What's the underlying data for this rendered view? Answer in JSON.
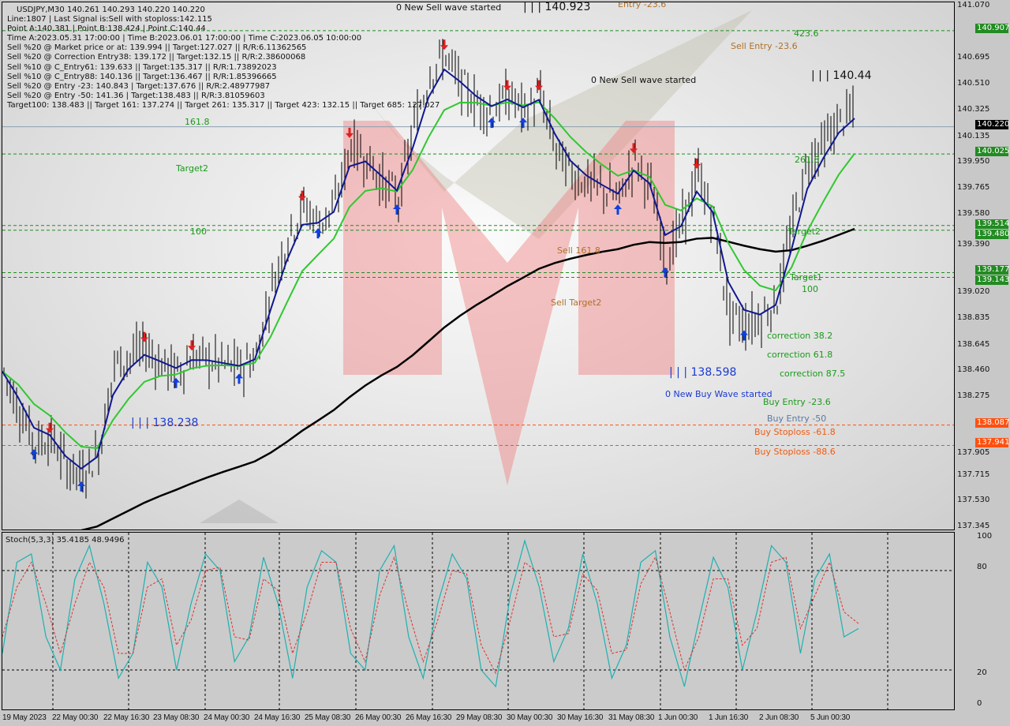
{
  "header": {
    "symbol_line": "USDJPY,M30  140.261 140.293 140.220 140.220",
    "lines": [
      "Line:1807 | Last Signal is:Sell with stoploss:142.115",
      "Point A:140.381 | Point B:138.424 | Point C:140.44",
      "Time A:2023.05.31 17:00:00 | Time B:2023.06.01 17:00:00 | Time C:2023.06.05 10:00:00",
      "Sell %20 @ Market price or at: 139.994 || Target:127.027 || R/R:6.11362565",
      "Sell %20 @ Correction Entry38: 139.172 || Target:132.15 || R/R:2.38600068",
      "Sell %10 @ C_Entry61: 139.633 || Target:135.317 || R/R:1.73892023",
      "Sell %10 @ C_Entry88: 140.136 || Target:136.467 || R/R:1.85396665",
      "Sell %20 @ Entry -23: 140.843 | Target:137.676 || R/R:2.48977987",
      "Sell %20 @ Entry -50: 141.36 | Target:138.483 || R/R:3.81059603",
      "Target100: 138.483 || Target 161: 137.274 || Target 261: 135.317 || Target 423: 132.15 || Target 685: 127.027"
    ]
  },
  "annotations": {
    "new_sell_1": "0 New Sell wave started",
    "peak_1": "| | | 140.923",
    "sell_entry_top": "Entry -23.6",
    "sell_entry": "Sell Entry -23.6",
    "fib_423": "423.6",
    "peak_2": "| | | 140.44",
    "new_sell_2": "0 New Sell wave started",
    "fib_161": "161.8",
    "target2": "Target2",
    "fib_100": "100",
    "sell_161": "Sell 161.8",
    "sell_target2": "Sell Target2",
    "low_1": "| | | 138.238",
    "low_2": "| | | 138.598",
    "new_buy": "0 New Buy Wave started",
    "corr38": "correction 38.2",
    "corr61": "correction 61.8",
    "corr87": "correction 87.5",
    "buy_entry_23": "Buy Entry -23.6",
    "buy_entry_50": "Buy Entry -50",
    "buy_sl_61": "Buy Stoploss -61.8",
    "buy_sl_88": "Buy Stoploss -88.6",
    "target1_r": "Target1",
    "fib_100_r": "100",
    "target2_r": "Target2",
    "fib_261_r": "261.8"
  },
  "colors": {
    "candles": "#000000",
    "fast_ma": "#101890",
    "mid_ma": "#30c830",
    "slow_ma": "#000000",
    "stoch_main": "#20b0b0",
    "stoch_signal": "#e03030",
    "level_green": "#228b22",
    "level_orange": "#ff5010",
    "watermark": "#f08080"
  },
  "chart_data": [
    {
      "type": "line",
      "title": "USDJPY,M30",
      "ylim": [
        137.345,
        141.07
      ],
      "y_ticks": [
        "141.070",
        "140.695",
        "140.510",
        "140.325",
        "140.135",
        "139.950",
        "139.765",
        "139.580",
        "139.390",
        "139.020",
        "138.835",
        "138.645",
        "138.460",
        "138.275",
        "137.905",
        "137.715",
        "137.530",
        "137.345"
      ],
      "x_ticks": [
        "19 May 2023",
        "22 May 00:30",
        "22 May 16:30",
        "23 May 08:30",
        "24 May 00:30",
        "24 May 16:30",
        "25 May 08:30",
        "26 May 00:30",
        "26 May 16:30",
        "29 May 08:30",
        "30 May 00:30",
        "30 May 16:30",
        "31 May 08:30",
        "1 Jun 00:30",
        "1 Jun 16:30",
        "2 Jun 08:30",
        "5 Jun 00:30"
      ],
      "close": [
        138.47,
        138.19,
        137.96,
        137.99,
        137.79,
        137.73,
        137.9,
        138.52,
        138.58,
        138.64,
        138.52,
        138.47,
        138.58,
        138.55,
        138.52,
        138.5,
        138.58,
        139.09,
        139.43,
        139.65,
        139.54,
        139.65,
        140.1,
        139.99,
        139.82,
        139.71,
        140.22,
        140.61,
        140.73,
        140.5,
        140.39,
        140.33,
        140.44,
        140.33,
        140.44,
        140.05,
        139.88,
        139.82,
        139.77,
        139.71,
        139.99,
        139.77,
        139.26,
        139.54,
        139.88,
        139.54,
        138.86,
        138.81,
        138.86,
        138.98,
        139.54,
        139.99,
        140.1,
        140.27,
        140.33
      ],
      "price_levels": [
        {
          "value": "140.907",
          "color": "#228b22"
        },
        {
          "value": "140.025",
          "color": "#228b22"
        },
        {
          "value": "139.514",
          "color": "#228b22"
        },
        {
          "value": "139.480",
          "color": "#228b22"
        },
        {
          "value": "139.177",
          "color": "#228b22"
        },
        {
          "value": "139.143",
          "color": "#228b22"
        },
        {
          "value": "138.087",
          "color": "#ff5010"
        },
        {
          "value": "137.941",
          "color": "#ff5010"
        }
      ],
      "current_price": "140.220"
    },
    {
      "type": "line",
      "title": "Stoch(5,3,3) 35.4185 48.9496",
      "ylim": [
        0,
        100
      ],
      "y_ticks": [
        "100",
        "80",
        "20",
        "0"
      ],
      "levels": [
        80,
        20
      ],
      "main": [
        30,
        85,
        90,
        40,
        20,
        75,
        95,
        60,
        15,
        30,
        85,
        70,
        20,
        60,
        90,
        80,
        25,
        40,
        88,
        60,
        15,
        70,
        92,
        85,
        30,
        20,
        80,
        95,
        40,
        15,
        60,
        90,
        75,
        20,
        10,
        65,
        98,
        70,
        25,
        45,
        90,
        60,
        15,
        35,
        85,
        92,
        40,
        10,
        50,
        88,
        70,
        20,
        55,
        95,
        85,
        30,
        75,
        90,
        40,
        45
      ],
      "signal": [
        40,
        70,
        85,
        60,
        30,
        60,
        85,
        70,
        30,
        30,
        70,
        75,
        35,
        50,
        80,
        82,
        40,
        38,
        75,
        68,
        30,
        55,
        85,
        85,
        45,
        25,
        65,
        88,
        55,
        25,
        50,
        80,
        78,
        35,
        18,
        50,
        85,
        78,
        40,
        42,
        78,
        68,
        30,
        32,
        72,
        88,
        55,
        20,
        40,
        75,
        75,
        35,
        45,
        85,
        88,
        45,
        65,
        85,
        55,
        48
      ]
    }
  ]
}
